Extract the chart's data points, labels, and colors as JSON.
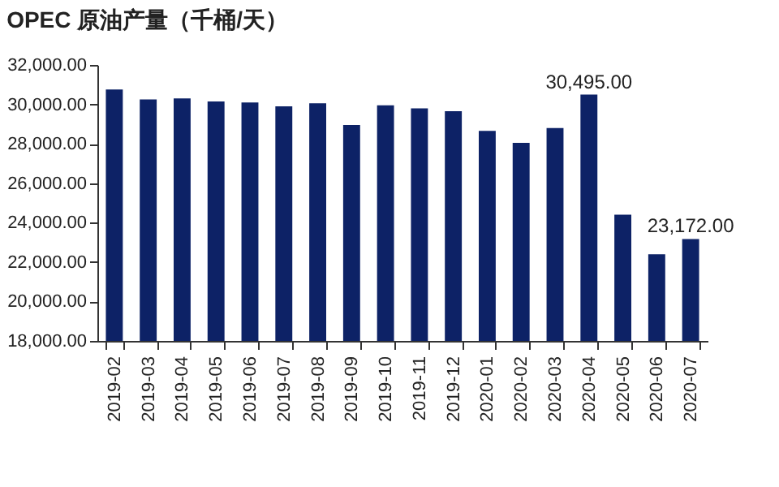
{
  "chart_data": {
    "type": "bar",
    "title": "OPEC 原油产量（千桶/天）",
    "categories": [
      "2019-02",
      "2019-03",
      "2019-04",
      "2019-05",
      "2019-06",
      "2019-07",
      "2019-08",
      "2019-09",
      "2019-10",
      "2019-11",
      "2019-12",
      "2020-01",
      "2020-02",
      "2020-03",
      "2020-04",
      "2020-05",
      "2020-06",
      "2020-07"
    ],
    "values": [
      30750,
      30250,
      30300,
      30150,
      30100,
      29900,
      30050,
      28950,
      29950,
      29800,
      29650,
      28650,
      28050,
      28800,
      30495,
      24400,
      22400,
      23172
    ],
    "value_labels": [
      null,
      null,
      null,
      null,
      null,
      null,
      null,
      null,
      null,
      null,
      null,
      null,
      null,
      null,
      "30,495.00",
      null,
      null,
      "23,172.00"
    ],
    "color": "#0d2266",
    "ylim": [
      18000,
      32000
    ],
    "yticks": [
      {
        "value": 18000,
        "label": "18,000.00"
      },
      {
        "value": 20000,
        "label": "20,000.00"
      },
      {
        "value": 22000,
        "label": "22,000.00"
      },
      {
        "value": 24000,
        "label": "24,000.00"
      },
      {
        "value": 26000,
        "label": "26,000.00"
      },
      {
        "value": 28000,
        "label": "28,000.00"
      },
      {
        "value": 30000,
        "label": "30,000.00"
      },
      {
        "value": 32000,
        "label": "32,000.00"
      }
    ],
    "grid": false
  }
}
